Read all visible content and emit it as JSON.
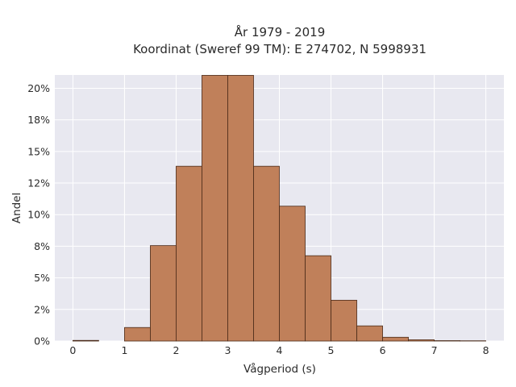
{
  "chart_data": {
    "type": "bar",
    "title": [
      "År 1979 - 2019",
      "Koordinat (Sweref 99 TM): E 274702, N 5998931"
    ],
    "xlabel": "Vågperiod (s)",
    "ylabel": "Andel",
    "xlim": [
      -0.35,
      8.35
    ],
    "ylim": [
      0,
      0.2105
    ],
    "grid": true,
    "background": "#e8e8f0",
    "bar_color": "#c0805a",
    "bar_edge": "#4a2a18",
    "bins": [
      {
        "x0": 0.0,
        "x1": 0.5,
        "value": 0.0005
      },
      {
        "x0": 0.5,
        "x1": 1.0,
        "value": 0.0
      },
      {
        "x0": 1.0,
        "x1": 1.5,
        "value": 0.0107
      },
      {
        "x0": 1.5,
        "x1": 2.0,
        "value": 0.0755
      },
      {
        "x0": 2.0,
        "x1": 2.5,
        "value": 0.1383
      },
      {
        "x0": 2.5,
        "x1": 3.0,
        "value": 0.2102
      },
      {
        "x0": 3.0,
        "x1": 3.5,
        "value": 0.2102
      },
      {
        "x0": 3.5,
        "x1": 4.0,
        "value": 0.1383
      },
      {
        "x0": 4.0,
        "x1": 4.5,
        "value": 0.1067
      },
      {
        "x0": 4.5,
        "x1": 5.0,
        "value": 0.0675
      },
      {
        "x0": 5.0,
        "x1": 5.5,
        "value": 0.0323
      },
      {
        "x0": 5.5,
        "x1": 6.0,
        "value": 0.012
      },
      {
        "x0": 6.0,
        "x1": 6.5,
        "value": 0.003
      },
      {
        "x0": 6.5,
        "x1": 7.0,
        "value": 0.001
      },
      {
        "x0": 7.0,
        "x1": 7.5,
        "value": 0.0003
      },
      {
        "x0": 7.5,
        "x1": 8.0,
        "value": 0.0002
      }
    ],
    "x_ticks": [
      {
        "value": 0,
        "label": "0"
      },
      {
        "value": 1,
        "label": "1"
      },
      {
        "value": 2,
        "label": "2"
      },
      {
        "value": 3,
        "label": "3"
      },
      {
        "value": 4,
        "label": "4"
      },
      {
        "value": 5,
        "label": "5"
      },
      {
        "value": 6,
        "label": "6"
      },
      {
        "value": 7,
        "label": "7"
      },
      {
        "value": 8,
        "label": "8"
      }
    ],
    "y_ticks": [
      {
        "value": 0.0,
        "label": "0%"
      },
      {
        "value": 0.025,
        "label": "2%"
      },
      {
        "value": 0.05,
        "label": "5%"
      },
      {
        "value": 0.075,
        "label": "8%"
      },
      {
        "value": 0.1,
        "label": "10%"
      },
      {
        "value": 0.125,
        "label": "12%"
      },
      {
        "value": 0.15,
        "label": "15%"
      },
      {
        "value": 0.175,
        "label": "18%"
      },
      {
        "value": 0.2,
        "label": "20%"
      }
    ]
  }
}
